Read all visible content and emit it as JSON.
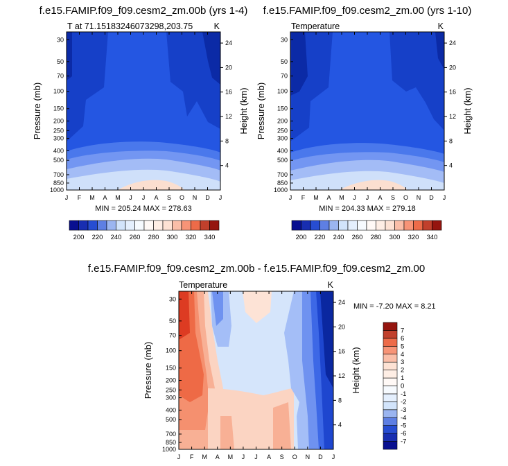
{
  "colors": {
    "cold_dark": "#00007f",
    "cold_mid": "#2a52d8",
    "cold_light": "#cfe2fb",
    "warm_light": "#fde0d1",
    "warm_mid": "#f4724e",
    "warm_dark": "#7f0000",
    "neutral": "#ffffff"
  },
  "chart_data": [
    {
      "type": "heatmap",
      "title": "f.e15.FAMIP.f09_f09.cesm2_zm.00b (yrs 1-4)",
      "left_label": "T at 71.15183246073298,203.75",
      "right_label": "K",
      "ylabel": "Pressure (mb)",
      "y2label": "Height (km)",
      "x_ticks": [
        "J",
        "F",
        "M",
        "A",
        "M",
        "J",
        "J",
        "A",
        "S",
        "O",
        "N",
        "D",
        "J"
      ],
      "pressure_ticks": [
        "30",
        "50",
        "70",
        "100",
        "150",
        "200",
        "250",
        "300",
        "400",
        "500",
        "700",
        "850",
        "1000"
      ],
      "height_ticks": [
        "24",
        "20",
        "16",
        "12",
        "8",
        "4"
      ],
      "min_max_label": "MIN = 205.24 MAX = 278.63",
      "min": 205.24,
      "max": 278.63,
      "colorbar_ticks": [
        "200",
        "220",
        "240",
        "260",
        "280",
        "300",
        "320",
        "340"
      ],
      "colorbar_range": [
        190,
        350
      ],
      "colorbar_levels": 16
    },
    {
      "type": "heatmap",
      "title": "f.e15.FAMIP.f09_f09.cesm2_zm.00 (yrs 1-10)",
      "left_label": "Temperature",
      "right_label": "K",
      "ylabel": "Pressure (mb)",
      "y2label": "Height (km)",
      "x_ticks": [
        "J",
        "F",
        "M",
        "A",
        "M",
        "J",
        "J",
        "A",
        "S",
        "O",
        "N",
        "D",
        "J"
      ],
      "pressure_ticks": [
        "30",
        "50",
        "70",
        "100",
        "150",
        "200",
        "250",
        "300",
        "400",
        "500",
        "700",
        "850",
        "1000"
      ],
      "height_ticks": [
        "24",
        "20",
        "16",
        "12",
        "8",
        "4"
      ],
      "min_max_label": "MIN = 204.33 MAX = 279.18",
      "min": 204.33,
      "max": 279.18,
      "colorbar_ticks": [
        "200",
        "220",
        "240",
        "260",
        "280",
        "300",
        "320",
        "340"
      ],
      "colorbar_range": [
        190,
        350
      ],
      "colorbar_levels": 16
    },
    {
      "type": "heatmap",
      "title": "f.e15.FAMIP.f09_f09.cesm2_zm.00b - f.e15.FAMIP.f09_f09.cesm2_zm.00",
      "left_label": "Temperature",
      "right_label": "K",
      "ylabel": "Pressure (mb)",
      "y2label": "Height (km)",
      "x_ticks": [
        "J",
        "F",
        "M",
        "A",
        "M",
        "J",
        "J",
        "A",
        "S",
        "O",
        "N",
        "D",
        "J"
      ],
      "pressure_ticks": [
        "30",
        "50",
        "70",
        "100",
        "150",
        "200",
        "250",
        "300",
        "400",
        "500",
        "700",
        "850",
        "1000"
      ],
      "height_ticks": [
        "24",
        "20",
        "16",
        "12",
        "8",
        "4"
      ],
      "min_max_label": "MIN = -7.20 MAX =  8.21",
      "min": -7.2,
      "max": 8.21,
      "colorbar_ticks": [
        "7",
        "6",
        "5",
        "4",
        "3",
        "2",
        "1",
        "0",
        "-1",
        "-2",
        "-3",
        "-4",
        "-5",
        "-6",
        "-7"
      ],
      "colorbar_range": [
        -8,
        8
      ],
      "colorbar_levels": 16
    }
  ]
}
